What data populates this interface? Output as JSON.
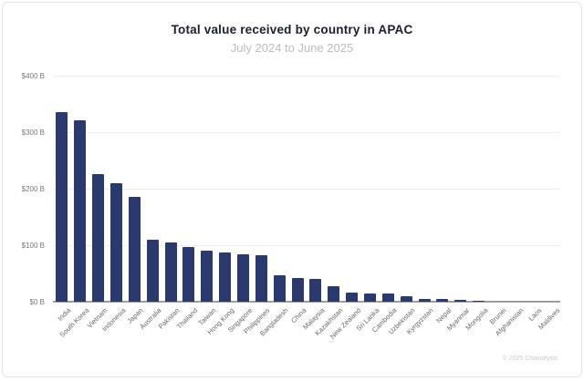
{
  "header": {
    "title": "Total value received by country in APAC",
    "subtitle": "July 2024 to June 2025"
  },
  "footer": {
    "copyright": "© 2025 Chainalysis"
  },
  "colors": {
    "bar": "#2b3a6e",
    "gridline": "#ededef",
    "baseline": "#9c9ca2",
    "title_text": "#1a1e30",
    "subtitle_text": "#b9bcc1",
    "axis_text": "#67676b",
    "copyright_text": "#c9c9ce",
    "card_border": "#e3e3e7"
  },
  "chart_data": {
    "type": "bar",
    "title": "Total value received by country in APAC",
    "subtitle": "July 2024 to June 2025",
    "unit": "USD billions",
    "xlabel": "",
    "ylabel": "",
    "ylim": [
      0,
      400
    ],
    "grid": true,
    "legend": "none",
    "y_ticks": [
      {
        "value": 0,
        "label": "$0 B"
      },
      {
        "value": 100,
        "label": "$100 B"
      },
      {
        "value": 200,
        "label": "$200 B"
      },
      {
        "value": 300,
        "label": "$300 B"
      },
      {
        "value": 400,
        "label": "$400 B"
      }
    ],
    "categories": [
      "India",
      "South Korea",
      "Vietnam",
      "Indonesia",
      "Japan",
      "Australia",
      "Pakistan",
      "Thailand",
      "Taiwan",
      "Hong Kong",
      "Singapore",
      "Philippines",
      "Bangladesh",
      "China",
      "Malaysia",
      "Kazakhstan",
      "New Zealand",
      "Sri Lanka",
      "Cambodia",
      "Uzbekistan",
      "Kyrgyzstan",
      "Nepal",
      "Myanmar",
      "Mongolia",
      "Brunei",
      "Afghanistan",
      "Laos",
      "Maldives"
    ],
    "values": [
      336,
      321,
      226,
      210,
      186,
      110,
      105,
      96,
      90,
      87,
      84,
      83,
      46,
      42,
      40,
      27,
      16,
      15,
      14,
      9,
      5.5,
      5,
      3.5,
      1.5,
      0.5,
      0.3,
      0.2,
      0.1
    ]
  }
}
